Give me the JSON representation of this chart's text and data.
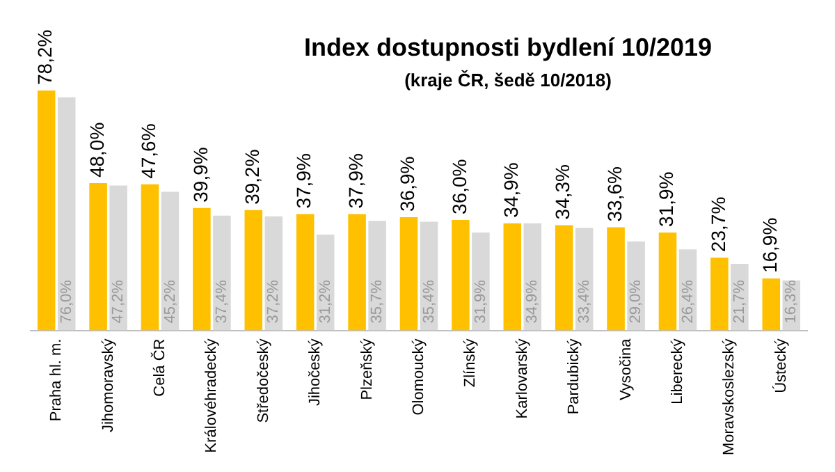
{
  "chart_data": {
    "type": "bar",
    "title": "Index dostupnosti bydlení 10/2019",
    "subtitle": "(kraje ČR, šedě 10/2018)",
    "categories": [
      "Praha hl. m.",
      "Jihomoravský",
      "Celá ČR",
      "Královéhradecký",
      "Středočeský",
      "Jihočeský",
      "Plzeňský",
      "Olomoucký",
      "Zlínský",
      "Karlovarský",
      "Pardubický",
      "Vysočina",
      "Liberecký",
      "Moravskoslezský",
      "Ústecký"
    ],
    "series": [
      {
        "color": "#ffc000",
        "values": [
          78.2,
          48.0,
          47.6,
          39.9,
          39.2,
          37.9,
          37.9,
          36.9,
          36.0,
          34.9,
          34.3,
          33.6,
          31.9,
          23.7,
          16.9
        ],
        "value_labels": [
          "78,2%",
          "48,0%",
          "47,6%",
          "39,9%",
          "39,2%",
          "37,9%",
          "37,9%",
          "36,9%",
          "36,0%",
          "34,9%",
          "34,3%",
          "33,6%",
          "31,9%",
          "23,7%",
          "16,9%"
        ]
      },
      {
        "color": "#d9d9d9",
        "values": [
          76.0,
          47.2,
          45.2,
          37.4,
          37.2,
          31.2,
          35.7,
          35.4,
          31.9,
          34.9,
          33.4,
          29.0,
          26.4,
          21.7,
          16.3
        ],
        "value_labels": [
          "76,0%",
          "47,2%",
          "45,2%",
          "37,4%",
          "37,2%",
          "31,2%",
          "35,7%",
          "35,4%",
          "31,9%",
          "34,9%",
          "33,4%",
          "29,0%",
          "26,4%",
          "21,7%",
          "16,3%"
        ]
      }
    ],
    "tick_labels": "x",
    "grid": false,
    "legend": false
  }
}
